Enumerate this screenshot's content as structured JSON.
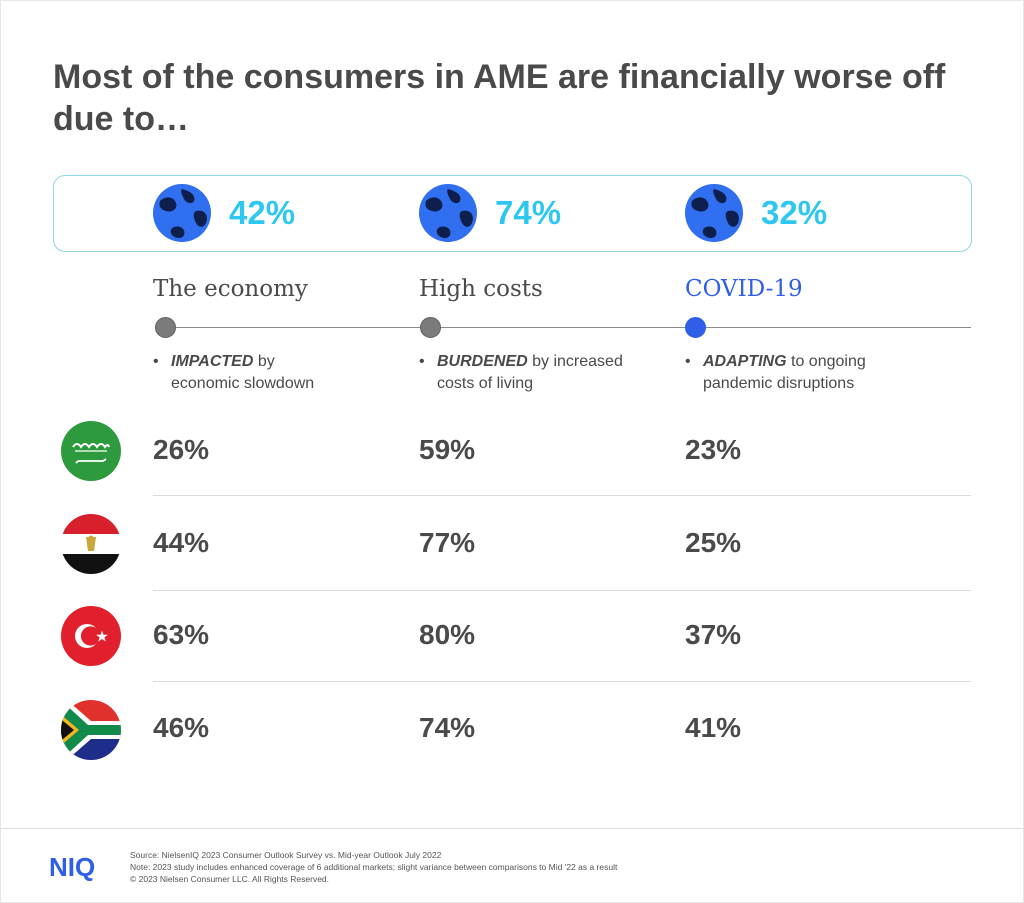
{
  "title": "Most of the consumers in AME are financially worse off due to…",
  "colors": {
    "accent_cyan": "#2ec7f0",
    "covid_blue": "#2f5fe8",
    "text": "#4a4a4a",
    "box_border": "#8fd6e6"
  },
  "summary": [
    {
      "value": "42%",
      "icon": "globe-icon"
    },
    {
      "value": "74%",
      "icon": "globe-icon"
    },
    {
      "value": "32%",
      "icon": "globe-icon"
    }
  ],
  "columns": [
    {
      "label": "The economy",
      "keyword": "IMPACTED",
      "rest": " by",
      "line2": "economic slowdown"
    },
    {
      "label": "High costs",
      "keyword": "BURDENED",
      "rest": " by increased",
      "line2": "costs of living"
    },
    {
      "label": "COVID-19",
      "keyword": "ADAPTING",
      "rest": " to ongoing",
      "line2": "pandemic disruptions"
    }
  ],
  "chart_data": {
    "type": "table",
    "title": "Most of the consumers in AME are financially worse off due to…",
    "columns": [
      "The economy",
      "High costs",
      "COVID-19"
    ],
    "totals": [
      "42%",
      "74%",
      "32%"
    ],
    "rows": [
      {
        "flag": "saudi-arabia-flag-icon",
        "values": [
          "26%",
          "59%",
          "23%"
        ]
      },
      {
        "flag": "egypt-flag-icon",
        "values": [
          "44%",
          "77%",
          "25%"
        ]
      },
      {
        "flag": "turkey-flag-icon",
        "values": [
          "63%",
          "80%",
          "37%"
        ]
      },
      {
        "flag": "south-africa-flag-icon",
        "values": [
          "46%",
          "74%",
          "41%"
        ]
      }
    ]
  },
  "footer": {
    "logo": "NIQ",
    "source": "Source: NielsenIQ 2023 Consumer Outlook Survey vs. Mid-year Outlook July 2022",
    "note": "Note: 2023 study includes enhanced coverage of 6 additional markets; slight variance between comparisons to Mid '22 as a result",
    "copyright": "© 2023 Nielsen Consumer LLC. All Rights Reserved."
  }
}
